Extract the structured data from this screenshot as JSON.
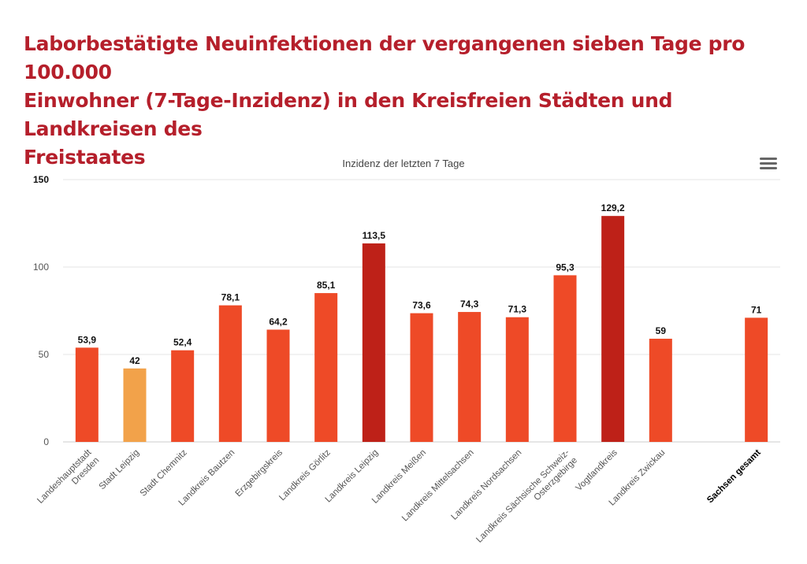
{
  "page": {
    "title": "Laborbestätigte Neuinfektionen der vergangenen sieben Tage pro 100.000\nEinwohner (7-Tage-Inzidenz) in den Kreisfreien Städten und Landkreisen des\nFreistaates"
  },
  "chart_menu": {
    "icon": "hamburger-menu-icon"
  },
  "colors": {
    "default_bar": "#ee4a27",
    "low_bar": "#f2a24a",
    "high_bar": "#be2118",
    "grid": "#e6e6e6",
    "title_red": "#b51f2b"
  },
  "chart_data": {
    "type": "bar",
    "title": "Inzidenz der letzten 7 Tage",
    "xlabel": "",
    "ylabel": "",
    "ylim": [
      0,
      150
    ],
    "yticks": [
      0,
      50,
      100,
      150
    ],
    "grid": true,
    "categories": [
      "Landeshauptstadt Dresden",
      "Stadt Leipzig",
      "Stadt Chemnitz",
      "Landkreis Bautzen",
      "Erzgebirgskreis",
      "Landkreis Görlitz",
      "Landkreis Leipzig",
      "Landkreis Meißen",
      "Landkreis Mittelsachsen",
      "Landkreis Nordsachsen",
      "Landkreis Sächsische Schweiz-Osterzgebirge",
      "Vogtlandkreis",
      "Landkreis Zwickau",
      "",
      "Sachsen gesamt"
    ],
    "category_lines": [
      [
        "Landeshauptstadt",
        "Dresden"
      ],
      [
        "Stadt Leipzig"
      ],
      [
        "Stadt Chemnitz"
      ],
      [
        "Landkreis Bautzen"
      ],
      [
        "Erzgebirgskreis"
      ],
      [
        "Landkreis Görlitz"
      ],
      [
        "Landkreis Leipzig"
      ],
      [
        "Landkreis Meißen"
      ],
      [
        "Landkreis Mittelsachsen"
      ],
      [
        "Landkreis Nordsachsen"
      ],
      [
        "Landkreis Sächsische Schweiz-",
        "Osterzgebirge"
      ],
      [
        "Vogtlandkreis"
      ],
      [
        "Landkreis Zwickau"
      ],
      [],
      [
        "Sachsen gesamt"
      ]
    ],
    "values": [
      53.9,
      42,
      52.4,
      78.1,
      64.2,
      85.1,
      113.5,
      73.6,
      74.3,
      71.3,
      95.3,
      129.2,
      59,
      null,
      71
    ],
    "value_labels": [
      "53,9",
      "42",
      "52,4",
      "78,1",
      "64,2",
      "85,1",
      "113,5",
      "73,6",
      "74,3",
      "71,3",
      "95,3",
      "129,2",
      "59",
      "",
      "71"
    ],
    "bar_colors": [
      "#ee4a27",
      "#f2a24a",
      "#ee4a27",
      "#ee4a27",
      "#ee4a27",
      "#ee4a27",
      "#be2118",
      "#ee4a27",
      "#ee4a27",
      "#ee4a27",
      "#ee4a27",
      "#be2118",
      "#ee4a27",
      "",
      "#ee4a27"
    ],
    "bold_categories": [
      false,
      false,
      false,
      false,
      false,
      false,
      false,
      false,
      false,
      false,
      false,
      false,
      false,
      false,
      true
    ]
  }
}
